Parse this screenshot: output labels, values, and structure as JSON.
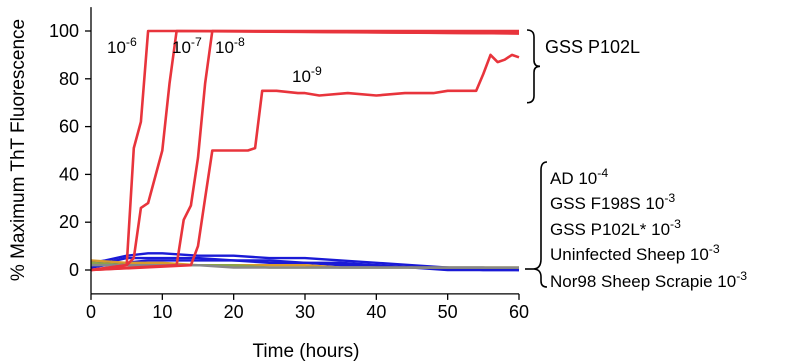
{
  "chart_data": {
    "type": "line",
    "xlabel": "Time (hours)",
    "ylabel": "% Maximum ThT Fluorescence",
    "xlim": [
      0,
      60
    ],
    "ylim": [
      -10,
      110
    ],
    "xticks": [
      "0",
      "10",
      "20",
      "30",
      "40",
      "50",
      "60"
    ],
    "yticks": [
      "0",
      "20",
      "40",
      "60",
      "80",
      "100"
    ],
    "grid": false,
    "colors": {
      "red": "#e8343c",
      "blue": "#1a1ad6",
      "gray": "#888888",
      "orange": "#d99a2b",
      "green": "#8ba34a"
    },
    "series": [
      {
        "label": {
          "base": "10",
          "exp": "-6"
        },
        "color": "red",
        "x": [
          0,
          5,
          6,
          7,
          8,
          9,
          60
        ],
        "y": [
          0,
          2,
          51,
          62,
          100,
          100,
          100
        ]
      },
      {
        "label": {
          "base": "10",
          "exp": "-7"
        },
        "color": "red",
        "x": [
          0,
          5,
          6,
          7,
          8,
          10,
          11,
          12,
          60
        ],
        "y": [
          0,
          2,
          5,
          26,
          28,
          50,
          78,
          100,
          99
        ]
      },
      {
        "label": {
          "base": "10",
          "exp": "-8"
        },
        "color": "red",
        "x": [
          0,
          12,
          13,
          14,
          15,
          16,
          17,
          60
        ],
        "y": [
          0,
          2,
          21,
          27,
          47,
          78,
          100,
          99
        ]
      },
      {
        "label": {
          "base": "10",
          "exp": "-9"
        },
        "color": "red",
        "x": [
          0,
          14,
          15,
          16,
          17,
          18,
          19,
          22,
          23,
          24,
          26,
          29,
          30,
          32,
          36,
          40,
          44,
          48,
          50,
          54,
          55,
          56,
          57,
          58,
          59,
          60
        ],
        "y": [
          0,
          2,
          10,
          30,
          50,
          50,
          50,
          50,
          51,
          75,
          75,
          74,
          74,
          73,
          74,
          73,
          74,
          74,
          75,
          75,
          82,
          90,
          87,
          88,
          90,
          89
        ]
      },
      {
        "label": null,
        "color": "blue",
        "x": [
          0,
          2,
          5,
          8,
          10,
          15,
          20,
          25,
          30,
          35,
          40,
          45,
          50,
          55,
          60
        ],
        "y": [
          3,
          4,
          6,
          7,
          7,
          6,
          6,
          5,
          5,
          4,
          3,
          2,
          1,
          1,
          0
        ]
      },
      {
        "label": null,
        "color": "blue",
        "x": [
          0,
          2,
          5,
          8,
          10,
          15,
          20,
          25,
          30,
          35,
          40,
          45,
          50,
          55,
          60
        ],
        "y": [
          2,
          3,
          5,
          5,
          5,
          5,
          4,
          4,
          3,
          3,
          2,
          1,
          1,
          0,
          0
        ]
      },
      {
        "label": null,
        "color": "blue",
        "x": [
          0,
          2,
          5,
          8,
          10,
          15,
          20,
          25,
          30,
          35,
          40,
          45,
          50,
          55,
          60
        ],
        "y": [
          1,
          2,
          3,
          4,
          4,
          4,
          4,
          3,
          3,
          2,
          2,
          1,
          0,
          0,
          0
        ]
      },
      {
        "label": null,
        "color": "orange",
        "x": [
          0,
          5,
          10,
          15,
          20,
          25,
          30,
          35,
          40,
          45,
          50,
          55,
          60
        ],
        "y": [
          4,
          3,
          3,
          2,
          2,
          2,
          2,
          1,
          1,
          1,
          1,
          1,
          1
        ]
      },
      {
        "label": null,
        "color": "green",
        "x": [
          0,
          5,
          10,
          15,
          20,
          25,
          30,
          35,
          40,
          45,
          50,
          55,
          60
        ],
        "y": [
          3,
          2,
          2,
          2,
          2,
          1,
          1,
          1,
          1,
          1,
          1,
          1,
          1
        ]
      },
      {
        "label": null,
        "color": "gray",
        "x": [
          0,
          5,
          10,
          15,
          20,
          25,
          30,
          35,
          40,
          45,
          50,
          55,
          60
        ],
        "y": [
          2,
          2,
          2,
          2,
          1,
          1,
          1,
          1,
          1,
          1,
          1,
          1,
          1
        ]
      }
    ],
    "annotations": [
      {
        "text": "GSS P102L",
        "brace_range": [
          0,
          100
        ]
      },
      {
        "base": "AD 10",
        "exp": "-4"
      },
      {
        "base": "GSS F198S 10",
        "exp": "-3"
      },
      {
        "base": "GSS P102L* 10",
        "exp": "-3"
      },
      {
        "base": "Uninfected Sheep 10",
        "exp": "-3"
      },
      {
        "base": "Nor98 Sheep Scrapie 10",
        "exp": "-3"
      }
    ]
  }
}
